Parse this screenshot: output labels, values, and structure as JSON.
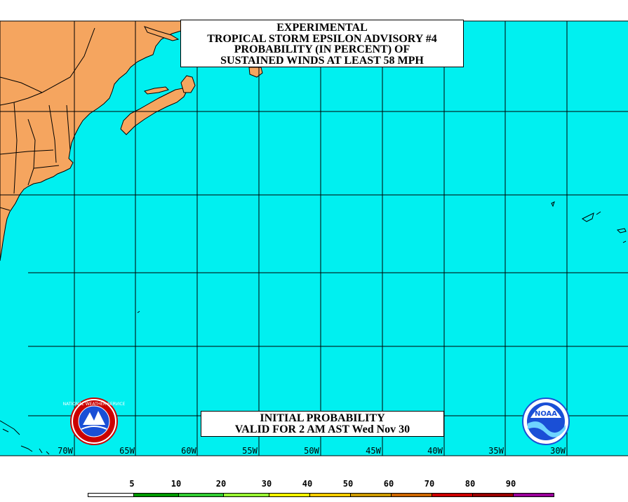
{
  "title": {
    "lines": [
      "EXPERIMENTAL",
      "TROPICAL STORM EPSILON ADVISORY #4",
      "PROBABILITY (IN PERCENT) OF",
      "SUSTAINED WINDS AT LEAST 58 MPH"
    ]
  },
  "valid": {
    "lines": [
      "INITIAL PROBABILITY",
      "VALID FOR 2 AM AST Wed Nov 30"
    ]
  },
  "longitude_labels": [
    "70W",
    "65W",
    "60W",
    "55W",
    "50W",
    "45W",
    "40W",
    "35W",
    "30W"
  ],
  "legend": {
    "labels": [
      "5",
      "10",
      "20",
      "30",
      "40",
      "50",
      "60",
      "70",
      "80",
      "90"
    ],
    "colors": [
      "#ffffff",
      "#009900",
      "#33cc33",
      "#99ff33",
      "#ffff00",
      "#ffcc00",
      "#cc9900",
      "#cc6600",
      "#cc0000",
      "#990000",
      "#990099"
    ]
  },
  "colors": {
    "ocean": "#00f0f0",
    "land": "#f5a55f",
    "grid": "#000000"
  },
  "logos": {
    "nws": "NATIONAL WEATHER SERVICE",
    "noaa": "NOAA"
  }
}
